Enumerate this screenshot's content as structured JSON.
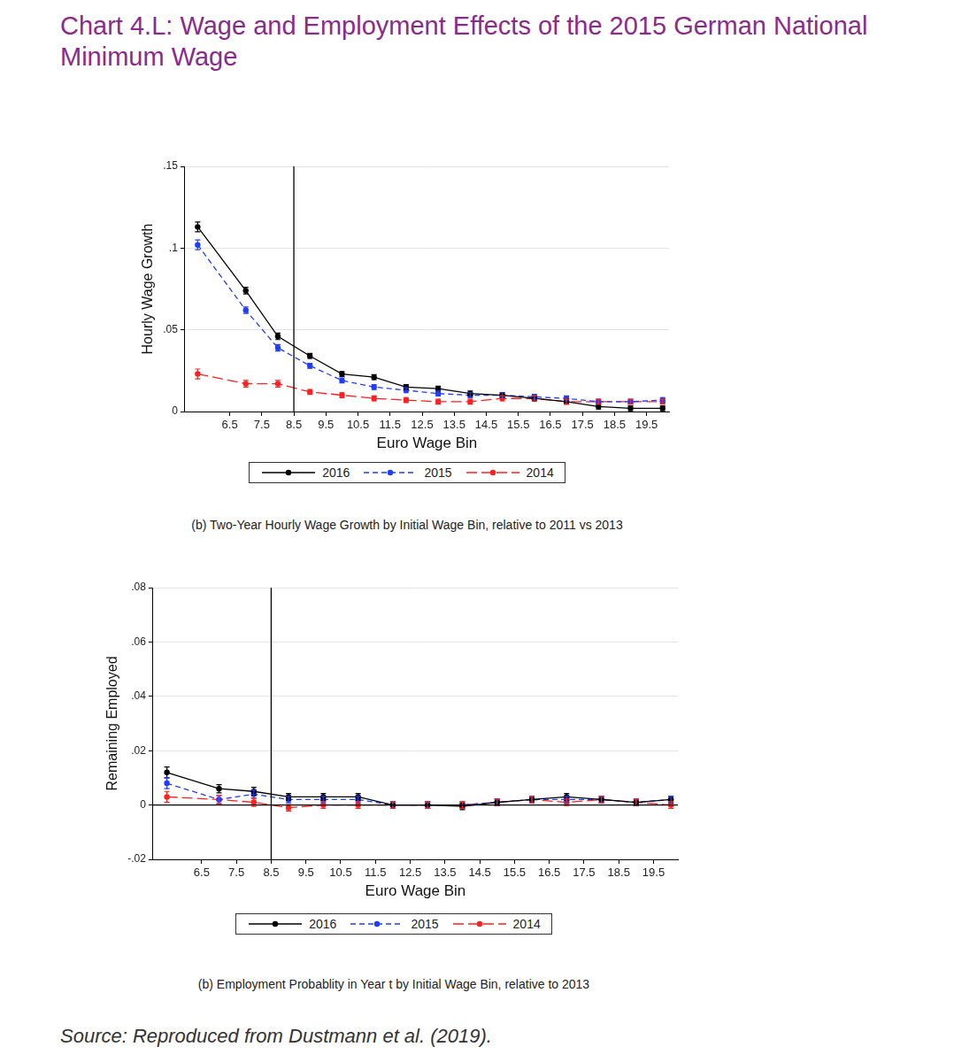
{
  "title": "Chart 4.L: Wage and Employment Effects of the 2015 German National Minimum Wage",
  "source": "Source: Reproduced from Dustmann et al. (2019).",
  "chart_data": [
    {
      "type": "line",
      "title": "(b) Two-Year Hourly Wage Growth by Initial Wage Bin, relative to 2011 vs 2013",
      "x_label": "Euro Wage Bin",
      "y_label": "Hourly Wage Growth",
      "x": [
        5.5,
        7,
        8,
        9,
        10,
        11,
        12,
        13,
        14,
        15,
        16,
        17,
        18,
        19,
        20
      ],
      "xlim": [
        5.1,
        20.2
      ],
      "xticks": [
        6.5,
        7.5,
        8.5,
        9.5,
        10.5,
        11.5,
        12.5,
        13.5,
        14.5,
        15.5,
        16.5,
        17.5,
        18.5,
        19.5
      ],
      "ylim": [
        0,
        0.15
      ],
      "yticks": [
        0,
        {
          "value": 0.05,
          "label": ".05"
        },
        {
          "value": 0.1,
          "label": ".1"
        },
        {
          "value": 0.15,
          "label": ".15"
        }
      ],
      "grid": true,
      "legend": "bottom",
      "vertical_line": 8.5,
      "series": [
        {
          "name": "2016",
          "color": "#000000",
          "line_style": "solid",
          "marker": "circle",
          "values": [
            0.113,
            0.074,
            0.046,
            0.034,
            0.023,
            0.021,
            0.015,
            0.014,
            0.011,
            0.01,
            0.008,
            0.006,
            0.003,
            0.002,
            0.002
          ],
          "errors": [
            0.003,
            0.002,
            0.002,
            0.0015,
            0.0015,
            0.0015,
            0.0015,
            0.0015,
            0.0015,
            0.0015,
            0.0015,
            0.0015,
            0.0015,
            0.0015,
            0.0015
          ]
        },
        {
          "name": "2015",
          "color": "#1f3cff",
          "line_style": "dash",
          "marker": "circle",
          "values": [
            0.102,
            0.062,
            0.039,
            0.028,
            0.019,
            0.015,
            0.013,
            0.011,
            0.01,
            0.01,
            0.009,
            0.008,
            0.006,
            0.006,
            0.007
          ],
          "errors": [
            0.003,
            0.002,
            0.002,
            0.0015,
            0.0015,
            0.0015,
            0.0015,
            0.0015,
            0.0015,
            0.0015,
            0.0015,
            0.0015,
            0.0015,
            0.0015,
            0.0015
          ]
        },
        {
          "name": "2014",
          "color": "#ff2020",
          "line_style": "longdash",
          "marker": "circle",
          "values": [
            0.023,
            0.017,
            0.017,
            0.012,
            0.01,
            0.008,
            0.007,
            0.006,
            0.006,
            0.008,
            0.008,
            0.006,
            0.006,
            0.006,
            0.006
          ],
          "errors": [
            0.003,
            0.002,
            0.002,
            0.0015,
            0.0015,
            0.0015,
            0.0015,
            0.0015,
            0.0015,
            0.0015,
            0.0015,
            0.0015,
            0.0015,
            0.0015,
            0.0015
          ]
        }
      ]
    },
    {
      "type": "line",
      "title": "(b) Employment Probablity in Year t  by Initial Wage Bin, relative to 2013",
      "x_label": "Euro Wage Bin",
      "y_label": "Remaining Employed",
      "x": [
        5.5,
        7,
        8,
        9,
        10,
        11,
        12,
        13,
        14,
        15,
        16,
        17,
        18,
        19,
        20
      ],
      "xlim": [
        5.1,
        20.2
      ],
      "xticks": [
        6.5,
        7.5,
        8.5,
        9.5,
        10.5,
        11.5,
        12.5,
        13.5,
        14.5,
        15.5,
        16.5,
        17.5,
        18.5,
        19.5
      ],
      "ylim": [
        -0.02,
        0.08
      ],
      "yticks": [
        {
          "value": -0.02,
          "label": "-.02"
        },
        0,
        {
          "value": 0.02,
          "label": ".02"
        },
        {
          "value": 0.04,
          "label": ".04"
        },
        {
          "value": 0.06,
          "label": ".06"
        },
        {
          "value": 0.08,
          "label": ".08"
        }
      ],
      "grid": true,
      "legend": "bottom",
      "vertical_line": 8.5,
      "horizontal_line": 0,
      "series": [
        {
          "name": "2016",
          "color": "#000000",
          "line_style": "solid",
          "marker": "circle",
          "values": [
            0.012,
            0.006,
            0.005,
            0.003,
            0.003,
            0.003,
            0.0,
            0.0,
            -0.0005,
            0.001,
            0.002,
            0.003,
            0.002,
            0.001,
            0.002
          ],
          "errors": [
            0.002,
            0.0015,
            0.0015,
            0.0012,
            0.0012,
            0.0012,
            0.0012,
            0.0012,
            0.0012,
            0.0012,
            0.0012,
            0.0012,
            0.0012,
            0.0012,
            0.0012
          ]
        },
        {
          "name": "2015",
          "color": "#1f3cff",
          "line_style": "dash",
          "marker": "circle",
          "values": [
            0.008,
            0.002,
            0.004,
            0.002,
            0.002,
            0.002,
            0.0,
            0.0,
            0.0,
            0.001,
            0.002,
            0.002,
            0.002,
            0.001,
            0.002
          ],
          "errors": [
            0.002,
            0.0015,
            0.0015,
            0.0012,
            0.0012,
            0.0012,
            0.0012,
            0.0012,
            0.0012,
            0.0012,
            0.0012,
            0.0012,
            0.0012,
            0.0012,
            0.0012
          ]
        },
        {
          "name": "2014",
          "color": "#ff2020",
          "line_style": "longdash",
          "marker": "circle",
          "values": [
            0.003,
            0.002,
            0.001,
            -0.001,
            0.0,
            0.0,
            0.0,
            0.0,
            0.0,
            0.001,
            0.002,
            0.001,
            0.002,
            0.001,
            0.0
          ],
          "errors": [
            0.002,
            0.0015,
            0.0015,
            0.0012,
            0.0012,
            0.0012,
            0.0012,
            0.0012,
            0.0012,
            0.0012,
            0.0012,
            0.0012,
            0.0012,
            0.0012,
            0.0012
          ]
        }
      ]
    }
  ]
}
